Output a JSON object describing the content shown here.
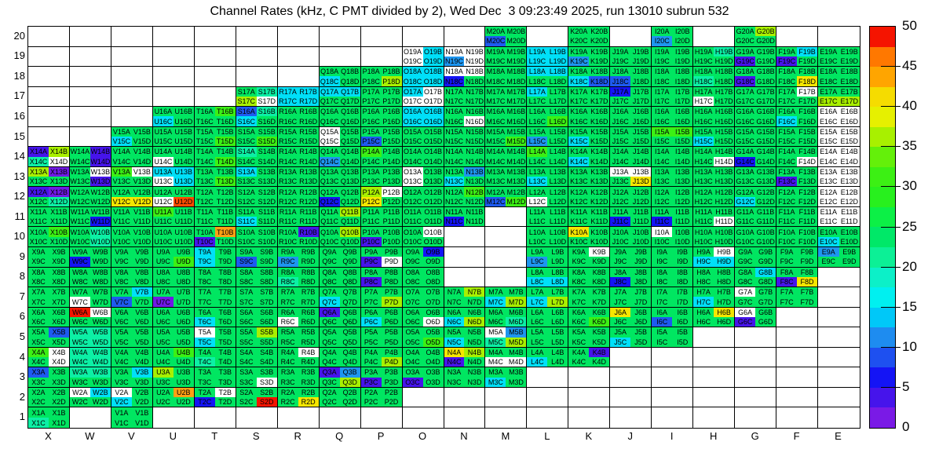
{
  "title": "Channel Rates (kHz, C PMT divided by 2), Wed Dec  3 09:23:49 2025, run 13010 subrun 532",
  "chart_data": {
    "type": "heatmap",
    "title": "Channel Rates (kHz, C PMT divided by 2), Wed Dec  3 09:23:49 2025, run 13010 subrun 532",
    "x_categories": [
      "X",
      "W",
      "V",
      "U",
      "T",
      "S",
      "R",
      "Q",
      "P",
      "O",
      "N",
      "M",
      "L",
      "K",
      "J",
      "I",
      "H",
      "G",
      "F",
      "E"
    ],
    "y_categories_top_to_bottom": [
      "20",
      "19",
      "18",
      "17",
      "16",
      "15",
      "14",
      "13",
      "12",
      "11",
      "10",
      "9",
      "8",
      "7",
      "6",
      "5",
      "4",
      "3",
      "2",
      "1"
    ],
    "channel_suffixes": [
      "A",
      "B",
      "C",
      "D"
    ],
    "grid_on": true,
    "legend_position": "right-colorbar",
    "colorbar": {
      "min": 0,
      "max": 50,
      "ticks": [
        0,
        5,
        10,
        15,
        20,
        25,
        30,
        35,
        40,
        45,
        50
      ],
      "band_colors_bottom_to_top": [
        "#7A1AE6",
        "#4614EB",
        "#1414F5",
        "#1E50F0",
        "#1E8CF0",
        "#00C8F8",
        "#00F0F0",
        "#0CF0C8",
        "#0CF096",
        "#00E868",
        "#0CF046",
        "#28F01E",
        "#3CF014",
        "#64F00A",
        "#A8F000",
        "#E6F000",
        "#F5DC00",
        "#FFA500",
        "#FF7800",
        "#F51400"
      ]
    },
    "palette": {
      "w": "#FFFFFF",
      "p": "#7019E6",
      "v": "#4614EB",
      "B": "#1414F5",
      "b": "#1E5AF0",
      "l": "#1E96F0",
      "c": "#00E0F8",
      "t": "#0CF0A5",
      "g": "#00E661",
      "G": "#3CF014",
      "Y": "#A8F000",
      "y": "#F5E600",
      "o": "#FFA014",
      "R": "#FF4B00",
      "r": "#F51400"
    },
    "palette_approx_values_khz": {
      "w": null,
      "p": 1,
      "v": 4,
      "B": 6,
      "b": 9,
      "l": 12,
      "c": 16,
      "t": 21,
      "g": 24,
      "G": 31,
      "Y": 34,
      "y": 38,
      "o": 41,
      "R": 46,
      "r": 49
    },
    "cells": {
      "20": {
        "M": "ggbg",
        "K": "gggg",
        "I": "gglg",
        "G": "gYgg"
      },
      "19": {
        "O": "wcwc",
        "N": "wwlw",
        "M": "gggg",
        "L": "cccc",
        "K": "gglg",
        "J": "gggg",
        "I": "gggg",
        "H": "gtgg",
        "G": "ggvg",
        "F": "gcvg",
        "E": "gggg"
      },
      "18": {
        "Q": "ggcg",
        "P": "gggY",
        "O": "cccc",
        "N": "wwBg",
        "M": "gggg",
        "L": "ccgg",
        "K": "ggcb",
        "J": "ggbg",
        "I": "gggg",
        "H": "ggtg",
        "G": "ggvg",
        "F": "gggy",
        "E": "gggg"
      },
      "17": {
        "S": "gtYw",
        "R": "cccc",
        "Q": "ccgg",
        "P": "gggg",
        "O": "cwww",
        "N": "gggg",
        "M": "gggg",
        "L": "cggg",
        "K": "gggg",
        "J": "Bggg",
        "I": "gggg",
        "H": "ggwg",
        "G": "gggg",
        "F": "gwgg",
        "E": "ggYY"
      },
      "16": {
        "U": "ggcg",
        "T": "gGgg",
        "S": "btcg",
        "R": "gggg",
        "Q": "gggg",
        "P": "gggg",
        "O": "cccc",
        "N": "gggw",
        "M": "gggg",
        "L": "gggG",
        "K": "gggg",
        "J": "gggg",
        "I": "gggg",
        "H": "gggg",
        "G": "gggg",
        "F": "ggcg",
        "E": "wwww"
      },
      "15": {
        "V": "ggcg",
        "U": "gggg",
        "T": "gggG",
        "S": "gggG",
        "R": "gggg",
        "Q": "wgwg",
        "P": "ggbg",
        "O": "gggg",
        "N": "gggg",
        "M": "gggG",
        "L": "gglg",
        "K": "ggcg",
        "J": "gggg",
        "I": "GGgg",
        "H": "ggcg",
        "G": "gggg",
        "F": "gggg",
        "E": "wwww"
      },
      "14": {
        "X": "vYtw",
        "W": "gvgv",
        "V": "gggg",
        "U": "ggwg",
        "T": "gggG",
        "S": "tggg",
        "R": "gggg",
        "Q": "gglg",
        "P": "Gggg",
        "O": "gggg",
        "N": "gggg",
        "M": "gggg",
        "L": "Gggg",
        "K": "ggcg",
        "J": "gggg",
        "I": "gggg",
        "H": "gggw",
        "G": "ggBg",
        "F": "gggw",
        "E": "wwww"
      },
      "13": {
        "X": "Ypgg",
        "W": "gwgv",
        "V": "Gwgg",
        "U": "ccwc",
        "T": "gggG",
        "S": "cggg",
        "R": "gggg",
        "Q": "gggg",
        "P": "gggg",
        "O": "wgwg",
        "N": "glcg",
        "M": "gggg",
        "L": "ggcg",
        "K": "gggg",
        "J": "wwgy",
        "I": "gggg",
        "H": "gggg",
        "G": "gggg",
        "F": "ggvg",
        "E": "wwww"
      },
      "12": {
        "X": "vpgt",
        "W": "gggg",
        "V": "ggyy",
        "U": "ggwR",
        "T": "gggg",
        "S": "gggg",
        "R": "gggg",
        "Q": "ggBg",
        "P": "Ywyg",
        "O": "gggg",
        "N": "gGgg",
        "M": "ggbG",
        "L": "ggwg",
        "K": "gggg",
        "J": "gggg",
        "I": "gggg",
        "H": "gggg",
        "G": "ggcg",
        "F": "gggg",
        "E": "wwww"
      },
      "11": {
        "X": "gggg",
        "W": "gggB",
        "V": "gggg",
        "U": "Gggg",
        "T": "gggg",
        "S": "ggcg",
        "R": "gggg",
        "Q": "gYgg",
        "P": "gggg",
        "O": "gggg",
        "N": "ggBg",
        "L": "gggg",
        "K": "gggg",
        "J": "ggBg",
        "I": "ggBg",
        "H": "gggw",
        "G": "gggg",
        "F": "gggg",
        "E": "wwww"
      },
      "10": {
        "X": "gGgg",
        "W": "gtgt",
        "V": "gggg",
        "U": "gggg",
        "T": "govg",
        "S": "gggg",
        "R": "gvgg",
        "Q": "gYgg",
        "P": "ggvg",
        "O": "gwgg",
        "L": "gggg",
        "K": "yggg",
        "J": "gggg",
        "I": "wggg",
        "H": "gggg",
        "G": "gggg",
        "F": "gggg",
        "E": "ggcg"
      },
      "9": {
        "X": "gggg",
        "W": "ggBg",
        "V": "gggg",
        "U": "gggG",
        "T": "cgcg",
        "S": "ggbg",
        "R": "gglg",
        "Q": "gggg",
        "P": "ggvw",
        "O": "gBgg",
        "L": "gglg",
        "K": "gwgg",
        "J": "gggg",
        "I": "gggg",
        "H": "gwcc",
        "G": "gggg",
        "F": "gggg",
        "E": "lggg"
      },
      "8": {
        "X": "gggg",
        "W": "gggg",
        "V": "gggg",
        "U": "gggg",
        "T": "gggg",
        "S": "gggg",
        "R": "ggtg",
        "Q": "gggg",
        "P": "ggvg",
        "O": "gggg",
        "L": "ggcc",
        "K": "gggg",
        "J": "ggBg",
        "I": "gggg",
        "H": "gggg",
        "G": "gcgg",
        "F": "ggvy"
      },
      "7": {
        "X": "gggg",
        "W": "ggwg",
        "V": "gcbg",
        "U": "ggpg",
        "T": "gggg",
        "S": "gggg",
        "R": "gggg",
        "Q": "ggcg",
        "P": "gggY",
        "O": "gggg",
        "N": "gYgg",
        "M": "ggcY",
        "L": "ggcY",
        "K": "gggg",
        "J": "gggg",
        "I": "gggg",
        "H": "ggcg",
        "G": "wggg",
        "F": "gggg"
      },
      "6": {
        "X": "gggg",
        "W": "rwgg",
        "V": "gggg",
        "U": "gggg",
        "T": "ggcg",
        "S": "gggg",
        "R": "ggwg",
        "Q": "vggg",
        "P": "ggcg",
        "O": "gggw",
        "N": "ggcY",
        "M": "gggt",
        "L": "gggg",
        "K": "gggG",
        "J": "yggg",
        "I": "ggbg",
        "H": "gygg",
        "G": "wgvg"
      },
      "5": {
        "X": "gbgg",
        "W": "tttt",
        "V": "gggg",
        "U": "gggg",
        "T": "wgcg",
        "S": "gYgg",
        "R": "gggg",
        "Q": "gggg",
        "P": "gggg",
        "O": "gggG",
        "N": "ggcg",
        "M": "wltY",
        "L": "gggg",
        "K": "gggg",
        "J": "ggcg",
        "I": "gggg"
      },
      "4": {
        "X": "Gwgw",
        "W": "tttt",
        "V": "gggg",
        "U": "gGgg",
        "T": "ggtg",
        "S": "gggg",
        "R": "gwgg",
        "Q": "gggg",
        "P": "gggY",
        "O": "gggg",
        "N": "yYvg",
        "M": "ggww",
        "L": "ggcg",
        "K": "gvgg"
      },
      "3": {
        "X": "bggg",
        "W": "ttgg",
        "V": "gcgg",
        "U": "Yggg",
        "T": "gggg",
        "S": "gggw",
        "R": "gggg",
        "Q": "vlgY",
        "P": "ggvg",
        "O": "ggvg",
        "N": "gggg",
        "M": "ggcg"
      },
      "2": {
        "X": "gggg",
        "W": "wcgg",
        "V": "wgcg",
        "U": "gogg",
        "T": "gwBg",
        "S": "gggr",
        "R": "gggy",
        "Q": "gggg",
        "P": "gggg"
      },
      "1": {
        "X": "ggtg",
        "V": "gggg"
      }
    }
  }
}
